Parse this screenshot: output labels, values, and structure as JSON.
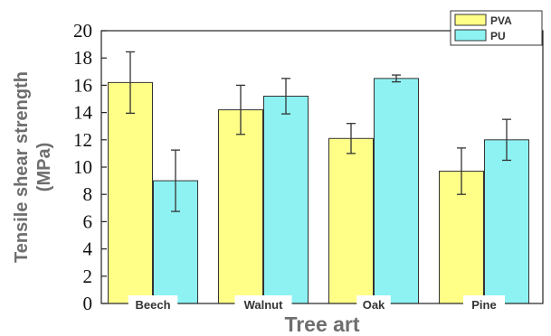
{
  "chart_data": {
    "type": "bar",
    "categories": [
      "Beech",
      "Walnut",
      "Oak",
      "Pine"
    ],
    "series": [
      {
        "name": "PVA",
        "color": "#ffff88",
        "values": [
          16.2,
          14.2,
          12.1,
          9.7
        ],
        "errors": [
          2.25,
          1.8,
          1.1,
          1.7
        ]
      },
      {
        "name": "PU",
        "color": "#8ef2f2",
        "values": [
          9.0,
          15.2,
          16.5,
          12.0
        ],
        "errors": [
          2.25,
          1.3,
          0.25,
          1.5
        ]
      }
    ],
    "xlabel": "Tree art",
    "ylabel_line1": "Tensile shear strength",
    "ylabel_line2": "(MPa)",
    "ylim": [
      0,
      20
    ],
    "yticks": [
      "0",
      "2",
      "4",
      "6",
      "8",
      "10",
      "12",
      "14",
      "16",
      "18",
      "20"
    ],
    "legend_position": "top-right",
    "grid": false
  }
}
